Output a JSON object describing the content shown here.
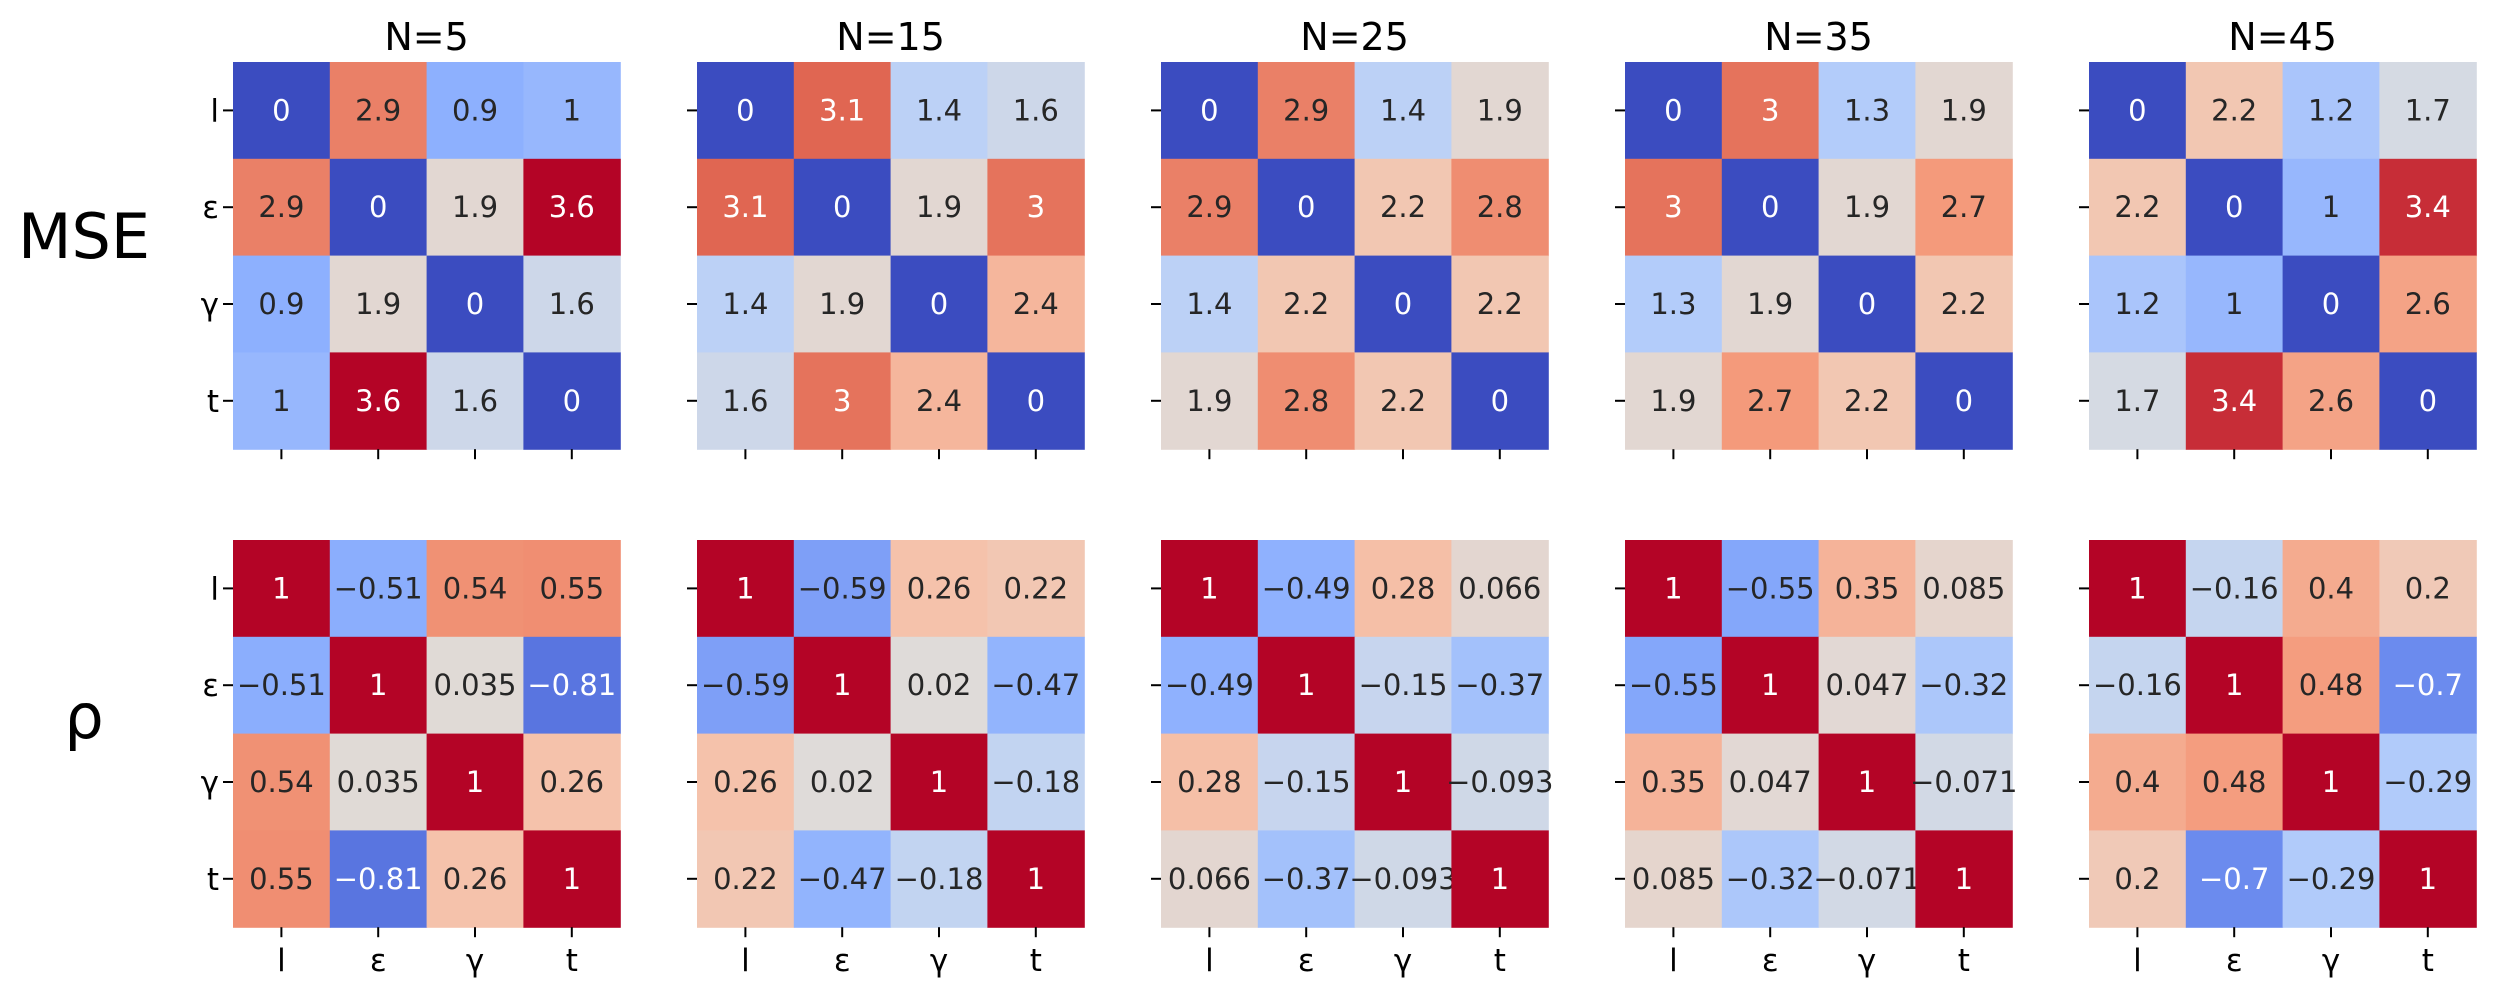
{
  "chart_data": {
    "type": "heatmap",
    "colormap": "coolwarm",
    "colorbar": false,
    "panel_titles": [
      "N=5",
      "N=15",
      "N=25",
      "N=35",
      "N=45"
    ],
    "row_titles": [
      "MSE",
      "ρ"
    ],
    "tick_labels": [
      "l",
      "ε",
      "γ",
      "t"
    ],
    "rows": [
      {
        "metric": "MSE",
        "color_range": [
          0,
          3.6
        ],
        "panels": [
          {
            "title": "N=5",
            "matrix": [
              [
                0,
                2.9,
                0.9,
                1
              ],
              [
                2.9,
                0,
                1.9,
                3.6
              ],
              [
                0.9,
                1.9,
                0,
                1.6
              ],
              [
                1,
                3.6,
                1.6,
                0
              ]
            ]
          },
          {
            "title": "N=15",
            "matrix": [
              [
                0,
                3.1,
                1.4,
                1.6
              ],
              [
                3.1,
                0,
                1.9,
                3
              ],
              [
                1.4,
                1.9,
                0,
                2.4
              ],
              [
                1.6,
                3,
                2.4,
                0
              ]
            ]
          },
          {
            "title": "N=25",
            "matrix": [
              [
                0,
                2.9,
                1.4,
                1.9
              ],
              [
                2.9,
                0,
                2.2,
                2.8
              ],
              [
                1.4,
                2.2,
                0,
                2.2
              ],
              [
                1.9,
                2.8,
                2.2,
                0
              ]
            ]
          },
          {
            "title": "N=35",
            "matrix": [
              [
                0,
                3,
                1.3,
                1.9
              ],
              [
                3,
                0,
                1.9,
                2.7
              ],
              [
                1.3,
                1.9,
                0,
                2.2
              ],
              [
                1.9,
                2.7,
                2.2,
                0
              ]
            ]
          },
          {
            "title": "N=45",
            "matrix": [
              [
                0,
                2.2,
                1.2,
                1.7
              ],
              [
                2.2,
                0,
                1,
                3.4
              ],
              [
                1.2,
                1,
                0,
                2.6
              ],
              [
                1.7,
                3.4,
                2.6,
                0
              ]
            ]
          }
        ]
      },
      {
        "metric": "ρ",
        "color_range": [
          -1,
          1
        ],
        "panels": [
          {
            "title": "N=5",
            "matrix": [
              [
                1,
                -0.51,
                0.54,
                0.55
              ],
              [
                -0.51,
                1,
                0.035,
                -0.81
              ],
              [
                0.54,
                0.035,
                1,
                0.26
              ],
              [
                0.55,
                -0.81,
                0.26,
                1
              ]
            ]
          },
          {
            "title": "N=15",
            "matrix": [
              [
                1,
                -0.59,
                0.26,
                0.22
              ],
              [
                -0.59,
                1,
                0.02,
                -0.47
              ],
              [
                0.26,
                0.02,
                1,
                -0.18
              ],
              [
                0.22,
                -0.47,
                -0.18,
                1
              ]
            ]
          },
          {
            "title": "N=25",
            "matrix": [
              [
                1,
                -0.49,
                0.28,
                0.066
              ],
              [
                -0.49,
                1,
                -0.15,
                -0.37
              ],
              [
                0.28,
                -0.15,
                1,
                -0.093
              ],
              [
                0.066,
                -0.37,
                -0.093,
                1
              ]
            ]
          },
          {
            "title": "N=35",
            "matrix": [
              [
                1,
                -0.55,
                0.35,
                0.085
              ],
              [
                -0.55,
                1,
                0.047,
                -0.32
              ],
              [
                0.35,
                0.047,
                1,
                -0.071
              ],
              [
                0.085,
                -0.32,
                -0.071,
                1
              ]
            ]
          },
          {
            "title": "N=45",
            "matrix": [
              [
                1,
                -0.16,
                0.4,
                0.2
              ],
              [
                -0.16,
                1,
                0.48,
                -0.7
              ],
              [
                0.4,
                0.48,
                1,
                -0.29
              ],
              [
                0.2,
                -0.7,
                -0.29,
                1
              ]
            ]
          }
        ]
      }
    ]
  }
}
